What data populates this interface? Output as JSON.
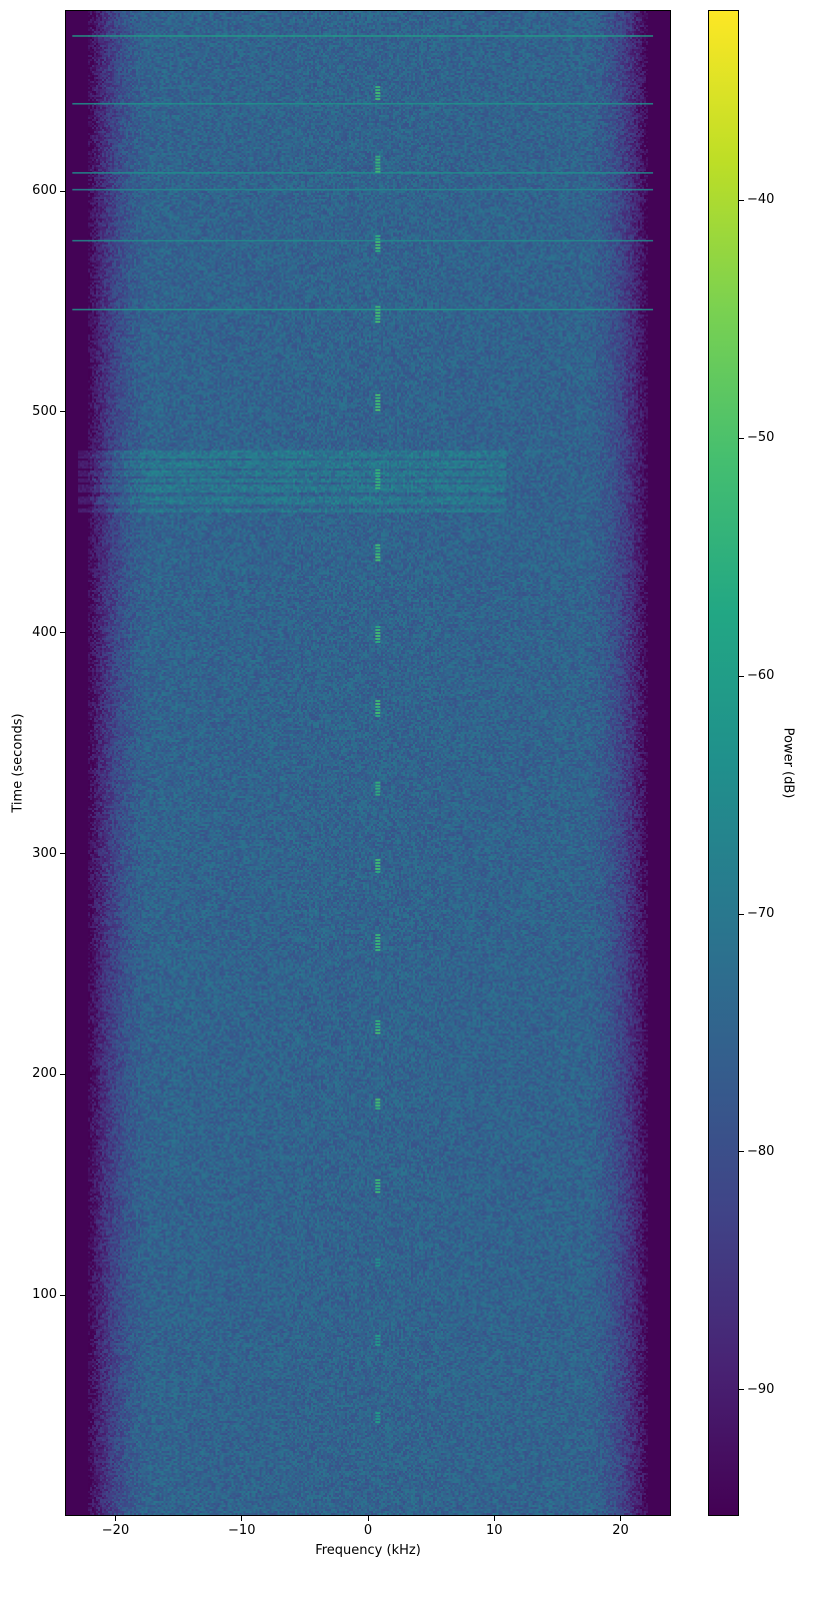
{
  "chart_data": {
    "type": "heatmap",
    "subtype": "spectrogram",
    "xlabel": "Frequency (kHz)",
    "ylabel": "Time (seconds)",
    "colorbar_label": "Power (dB)",
    "colormap": "viridis",
    "xlim": [
      -24,
      24
    ],
    "ylim": [
      0,
      682
    ],
    "clim": [
      -95.3,
      -32
    ],
    "xticks": [
      -20,
      -10,
      0,
      10,
      20
    ],
    "xtick_labels": [
      "−20",
      "−10",
      "0",
      "10",
      "20"
    ],
    "yticks": [
      100,
      200,
      300,
      400,
      500,
      600
    ],
    "ytick_labels": [
      "100",
      "200",
      "300",
      "400",
      "500",
      "600"
    ],
    "cticks": [
      -40,
      -50,
      -60,
      -70,
      -80,
      -90
    ],
    "ctick_labels": [
      "−40",
      "−50",
      "−60",
      "−70",
      "−80",
      "−90"
    ],
    "background_power_db": -75,
    "band_edge_rolloff_khz": [
      -18,
      18
    ],
    "tone_bursts": {
      "frequency_khz": 0.7,
      "power_db": -50,
      "times_s": [
        45,
        80,
        115,
        150,
        187,
        222,
        260,
        295,
        330,
        366,
        400,
        437,
        470,
        505,
        545,
        577,
        613,
        645
      ],
      "durations_s": [
        5,
        5,
        4,
        6,
        5,
        6,
        8,
        6,
        6,
        8,
        7,
        7,
        9,
        7,
        7,
        7,
        7,
        6
      ]
    },
    "horizontal_lines": {
      "times_s": [
        670.6,
        639.9,
        608.6,
        601,
        577.9,
        546.7
      ],
      "power_db": [
        -60,
        -63,
        -64,
        -66,
        -65,
        -62
      ]
    },
    "broadband_interference": {
      "time_range_s": [
        455,
        485
      ],
      "freq_range_khz": [
        -23,
        11
      ],
      "power_db": -68
    }
  }
}
